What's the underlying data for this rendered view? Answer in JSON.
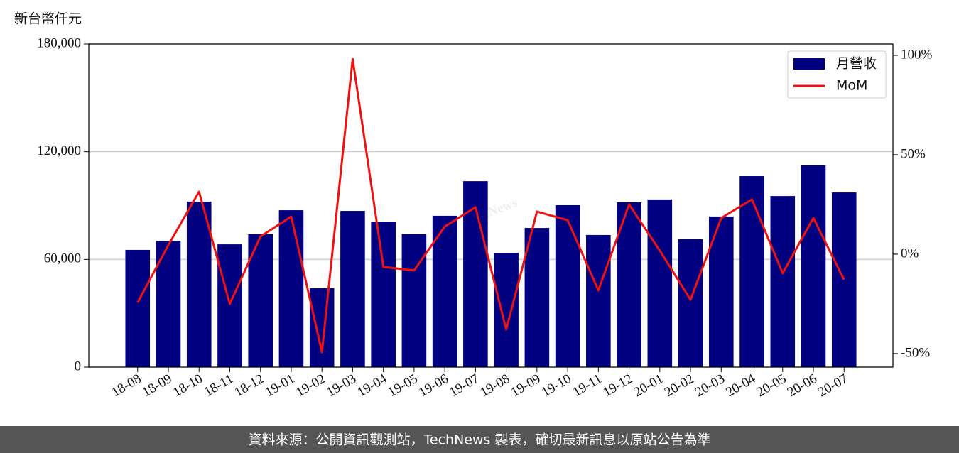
{
  "chart_data": {
    "type": "bar",
    "y_label": "新台幣仟元",
    "watermark": "TechNews",
    "footer": "資料來源：公開資訊觀測站，TechNews 製表，確切最新訊息以原站公告為準",
    "categories": [
      "18-08",
      "18-09",
      "18-10",
      "18-11",
      "18-12",
      "19-01",
      "19-02",
      "19-03",
      "19-04",
      "19-05",
      "19-06",
      "19-07",
      "19-08",
      "19-09",
      "19-10",
      "19-11",
      "19-12",
      "20-01",
      "20-02",
      "20-03",
      "20-04",
      "20-05",
      "20-06",
      "20-07"
    ],
    "series": [
      {
        "name": "月營收",
        "type": "bar",
        "color": "#000080",
        "values": [
          65300,
          70400,
          92200,
          68400,
          74000,
          87400,
          43900,
          87000,
          81100,
          74000,
          84300,
          103600,
          63700,
          77500,
          90200,
          73600,
          91800,
          93400,
          71200,
          83900,
          106400,
          95300,
          112400,
          97300
        ]
      },
      {
        "name": "MoM",
        "type": "line",
        "axis": "y2",
        "color": "#ee1111",
        "values": [
          -24.3,
          4.6,
          31.4,
          -25,
          8.9,
          18.9,
          -49.3,
          98.2,
          -6.4,
          -8.2,
          13.9,
          23.6,
          -37.9,
          21.4,
          17.1,
          -18.2,
          25,
          1.8,
          -22.9,
          18.2,
          27.5,
          -9.6,
          18.2,
          -12.9
        ]
      }
    ],
    "ylim": [
      0,
      180000
    ],
    "yticks": [
      0,
      {
        "value": 60000,
        "label": "60,000"
      },
      {
        "value": 120000,
        "label": "120,000"
      },
      {
        "value": 180000,
        "label": "180,000"
      }
    ],
    "y2lim": [
      -56.8,
      105.7
    ],
    "y2ticks": [
      {
        "value": -50,
        "label": "-50%"
      },
      {
        "value": 0,
        "label": "0%"
      },
      {
        "value": 50,
        "label": "50%"
      },
      {
        "value": 100,
        "label": "100%"
      }
    ],
    "grid": true,
    "legend": "upper right"
  }
}
